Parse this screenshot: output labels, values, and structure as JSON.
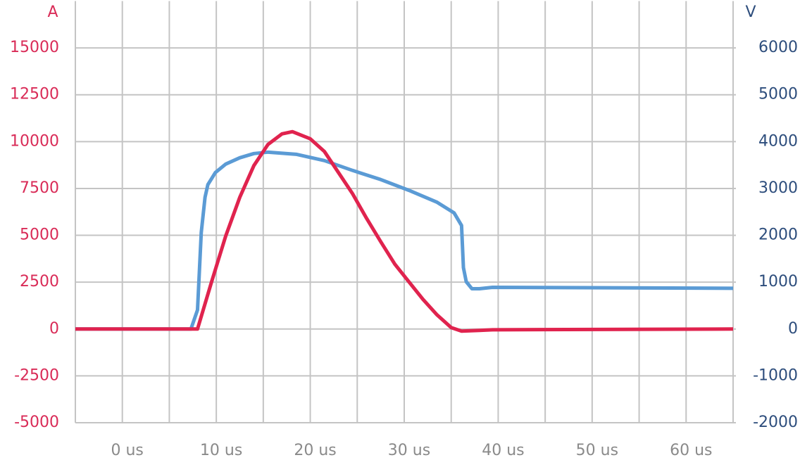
{
  "chart_data": {
    "type": "line",
    "y_label": "A",
    "y2_label": "V",
    "xlim": [
      -5,
      65
    ],
    "ylim": [
      -5000,
      17500
    ],
    "y2lim": [
      -2000,
      7000
    ],
    "xticks": [
      {
        "value": 0,
        "label": "0 us"
      },
      {
        "value": 10,
        "label": "10 us"
      },
      {
        "value": 20,
        "label": "20 us"
      },
      {
        "value": 30,
        "label": "30 us"
      },
      {
        "value": 40,
        "label": "40 us"
      },
      {
        "value": 50,
        "label": "50 us"
      },
      {
        "value": 60,
        "label": "60 us"
      }
    ],
    "x_minor_grid": [
      -5,
      5,
      15,
      25,
      35,
      45,
      55,
      65
    ],
    "yticks": [
      -5000,
      -2500,
      0,
      2500,
      5000,
      7500,
      10000,
      12500,
      15000
    ],
    "y2ticks": [
      -2000,
      -1000,
      0,
      1000,
      2000,
      3000,
      4000,
      5000,
      6000
    ],
    "grid": true,
    "y_color": "#d92b57",
    "y2_color": "#2d4d7c",
    "x_tick_color": "#8a8a8a",
    "series": [
      {
        "color": "#5b9bd5",
        "x": [
          -5,
          7.3,
          8,
          8.4,
          8.8,
          9.1,
          9.9,
          11,
          12.5,
          14,
          15.5,
          18.5,
          21.5,
          24.5,
          27.5,
          30.5,
          33.5,
          35.3,
          36.1,
          36.3,
          36.6,
          37.2,
          38,
          39.4,
          65
        ],
        "values": [
          0,
          0,
          406,
          2060,
          2810,
          3080,
          3340,
          3520,
          3655,
          3745,
          3775,
          3730,
          3595,
          3385,
          3190,
          2960,
          2705,
          2480,
          2210,
          1310,
          1010,
          860,
          860,
          890,
          870
        ],
        "axis": "y2"
      },
      {
        "color": "#e0234e",
        "x": [
          -5,
          8,
          9.5,
          11,
          12.5,
          14,
          15.5,
          17,
          18.1,
          20,
          21.5,
          23,
          24.5,
          26,
          27.5,
          29,
          30.5,
          32,
          33.5,
          35,
          36.1,
          38,
          39.4,
          65
        ],
        "values": [
          0,
          0,
          2520,
          4960,
          7030,
          8720,
          9850,
          10415,
          10530,
          10150,
          9475,
          8350,
          7220,
          5900,
          4660,
          3460,
          2520,
          1580,
          750,
          75,
          -110,
          -75,
          -40,
          0
        ]
      }
    ]
  }
}
